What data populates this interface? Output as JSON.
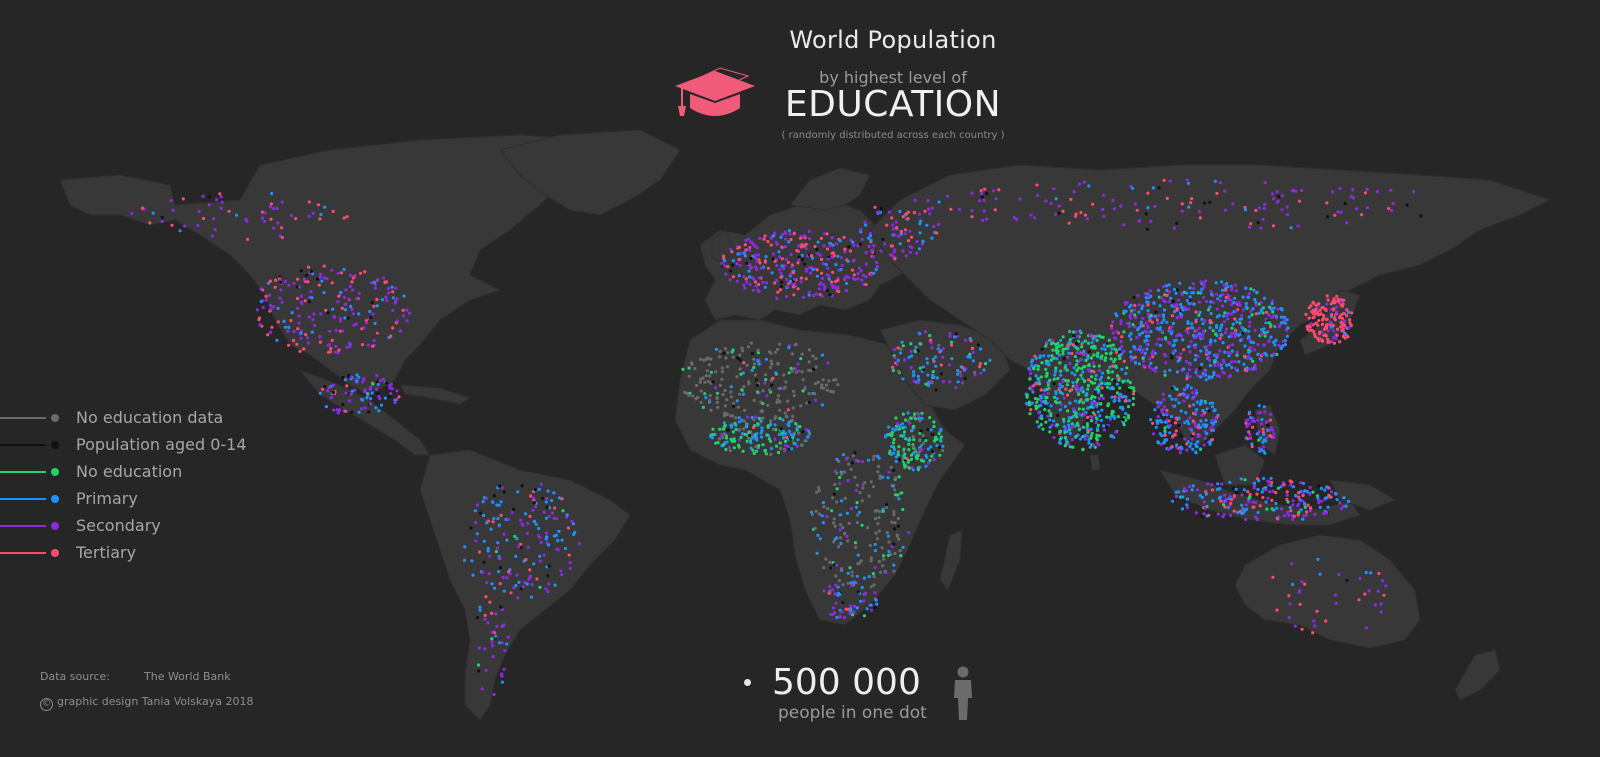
{
  "header": {
    "title": "World Population",
    "subtitle_prefix": "by highest level of",
    "subtitle_main": "EDUCATION",
    "note": "( randomly distributed across each country )"
  },
  "colors": {
    "background": "#262626",
    "land": "#383838",
    "no_data": "#6a6a6a",
    "aged_0_14": "#111111",
    "no_education": "#1ed46a",
    "primary": "#1e90ff",
    "secondary": "#8a2be2",
    "tertiary": "#ff4a6e",
    "accent": "#f25a7a"
  },
  "legend": {
    "items": [
      {
        "label": "No education data",
        "color": "#6a6a6a"
      },
      {
        "label": "Population aged 0-14",
        "color": "#111111"
      },
      {
        "label": "No education",
        "color": "#1ed46a"
      },
      {
        "label": "Primary",
        "color": "#1e90ff"
      },
      {
        "label": "Secondary",
        "color": "#8a2be2"
      },
      {
        "label": "Tertiary",
        "color": "#ff4a6e"
      }
    ]
  },
  "footer": {
    "source_label": "Data source:",
    "source_name": "The World Bank",
    "copyright_symbol": "©",
    "credit": "graphic design  Tania Volskaya  2018"
  },
  "scale": {
    "value": "500 000",
    "unit": "people in one dot"
  },
  "icons": [
    "graduation-cap-icon",
    "person-icon",
    "copyright-icon"
  ]
}
